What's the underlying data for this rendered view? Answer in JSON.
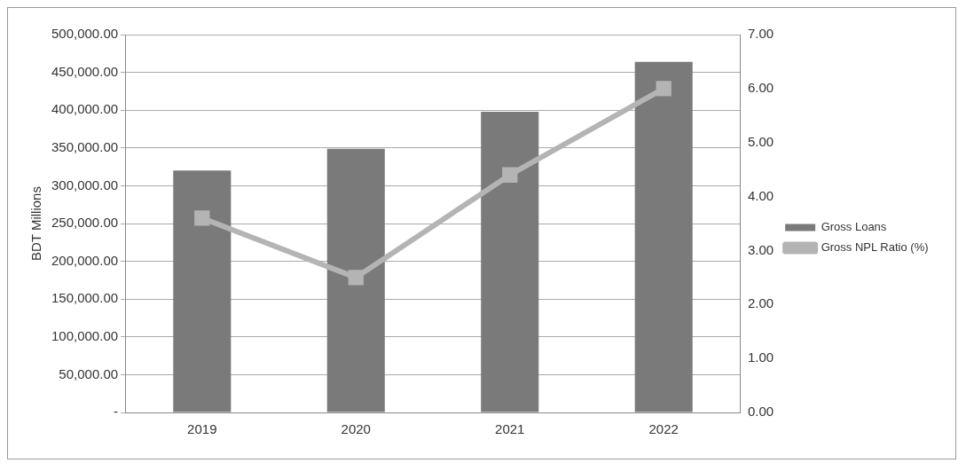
{
  "chart_data": {
    "type": "bar",
    "categories": [
      "2019",
      "2020",
      "2021",
      "2022"
    ],
    "series": [
      {
        "name": "Gross Loans",
        "color": "#7a7a7a",
        "values": [
          320000,
          349000,
          398000,
          464000
        ]
      },
      {
        "name": "Gross NPL Ratio (%)",
        "type": "line",
        "axis": "y2",
        "color": "#b4b4b4",
        "values": [
          3.6,
          2.5,
          4.4,
          6.0
        ]
      }
    ],
    "ylabel": "BDT Millions",
    "ylim": [
      0,
      500000
    ],
    "yticks": [
      {
        "value": 0,
        "label": "-"
      },
      {
        "value": 50000,
        "label": "50,000.00"
      },
      {
        "value": 100000,
        "label": "100,000.00"
      },
      {
        "value": 150000,
        "label": "150,000.00"
      },
      {
        "value": 200000,
        "label": "200,000.00"
      },
      {
        "value": 250000,
        "label": "250,000.00"
      },
      {
        "value": 300000,
        "label": "300,000.00"
      },
      {
        "value": 350000,
        "label": "350,000.00"
      },
      {
        "value": 400000,
        "label": "400,000.00"
      },
      {
        "value": 450000,
        "label": "450,000.00"
      },
      {
        "value": 500000,
        "label": "500,000.00"
      }
    ],
    "y2lim": [
      0,
      7
    ],
    "y2ticks": [
      {
        "value": 0,
        "label": "0.00"
      },
      {
        "value": 1,
        "label": "1.00"
      },
      {
        "value": 2,
        "label": "2.00"
      },
      {
        "value": 3,
        "label": "3.00"
      },
      {
        "value": 4,
        "label": "4.00"
      },
      {
        "value": 5,
        "label": "5.00"
      },
      {
        "value": 6,
        "label": "6.00"
      },
      {
        "value": 7,
        "label": "7.00"
      }
    ],
    "grid": "y",
    "legend": "right",
    "marker": "square",
    "line_style": "solid"
  }
}
